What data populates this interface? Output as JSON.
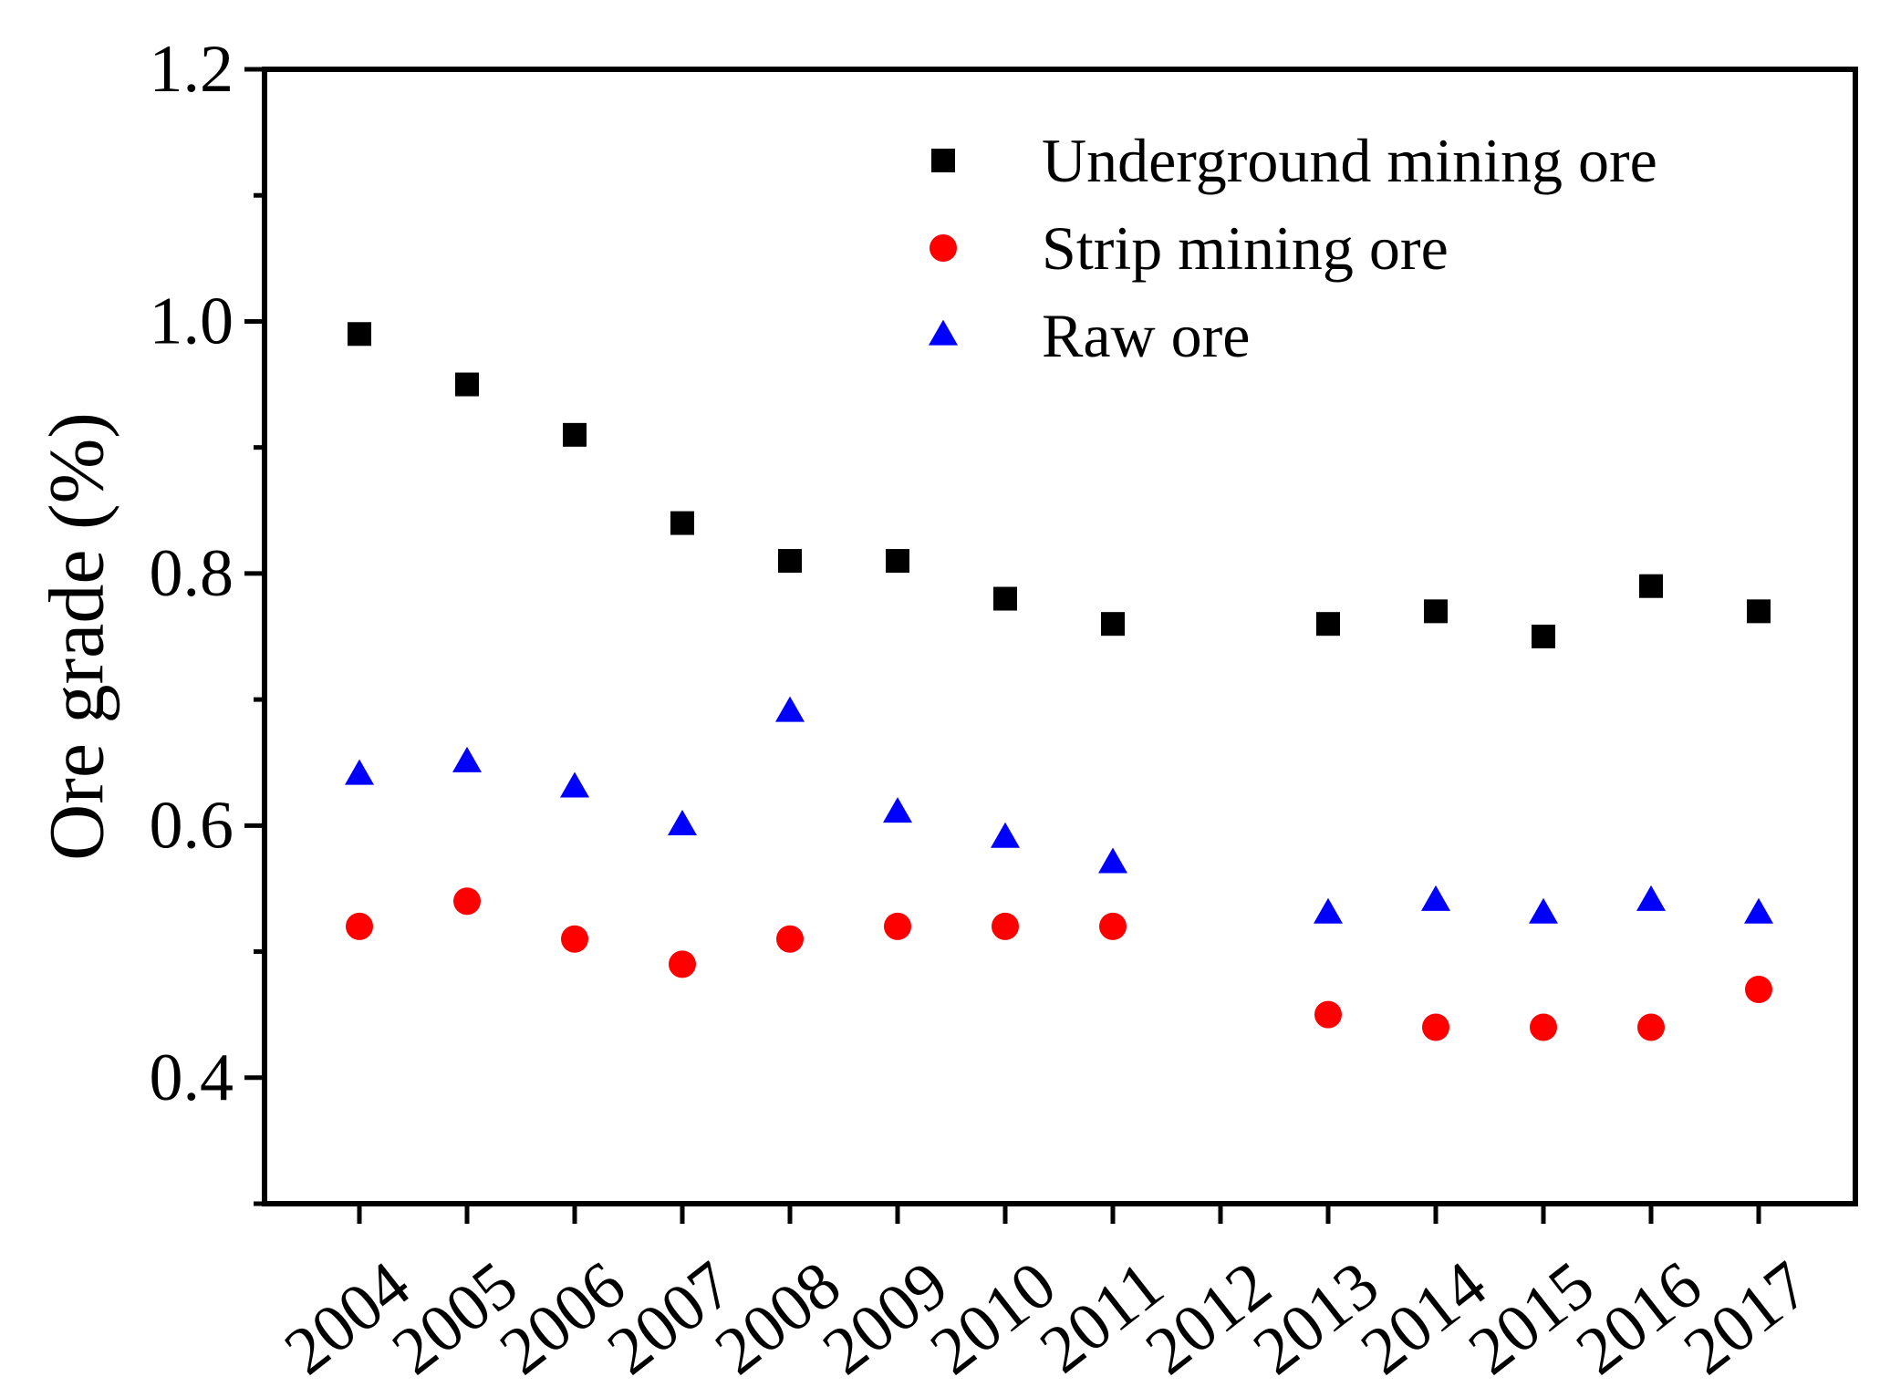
{
  "chart_data": {
    "type": "scatter",
    "title": "",
    "xlabel": "",
    "ylabel": "Ore grade (%)",
    "categories": [
      "2004",
      "2005",
      "2006",
      "2007",
      "2008",
      "2009",
      "2010",
      "2011",
      "2012",
      "2013",
      "2014",
      "2015",
      "2016",
      "2017"
    ],
    "ylim": [
      0.3,
      1.2
    ],
    "y_ticks": [
      0.4,
      0.6,
      0.8,
      1.0,
      1.2
    ],
    "y_tick_labels": [
      "0.4",
      "0.6",
      "0.8",
      "1.0",
      "1.2"
    ],
    "grid": false,
    "legend_position": "top-right",
    "series": [
      {
        "name": "Underground mining ore",
        "marker": "square",
        "color": "#000000",
        "values": [
          0.99,
          0.95,
          0.91,
          0.84,
          0.81,
          0.81,
          0.78,
          0.76,
          null,
          0.76,
          0.77,
          0.75,
          0.79,
          0.77
        ]
      },
      {
        "name": "Strip mining ore",
        "marker": "circle",
        "color": "#ff0000",
        "values": [
          0.52,
          0.54,
          0.51,
          0.49,
          0.51,
          0.52,
          0.52,
          0.52,
          null,
          0.45,
          0.44,
          0.44,
          0.44,
          0.47
        ]
      },
      {
        "name": "Raw ore",
        "marker": "triangle",
        "color": "#0000ff",
        "values": [
          0.64,
          0.65,
          0.63,
          0.6,
          0.69,
          0.61,
          0.59,
          0.57,
          null,
          0.53,
          0.54,
          0.53,
          0.54,
          0.53
        ]
      }
    ]
  }
}
